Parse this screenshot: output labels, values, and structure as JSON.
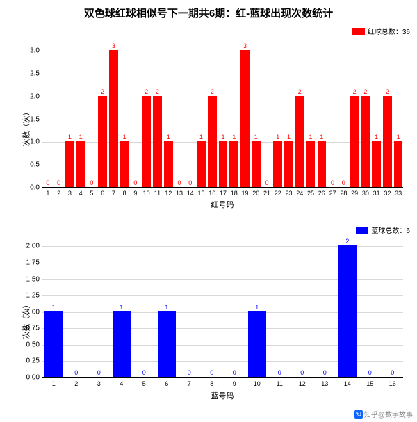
{
  "title": {
    "text": "双色球红球相似号下一期共6期：红-蓝球出现次数统计",
    "fontsize": 15,
    "color": "#000000"
  },
  "grid_color": "#d9d9d9",
  "background_color": "#ffffff",
  "red_chart": {
    "type": "bar",
    "color": "#ff0000",
    "legend_label": "红球总数：36",
    "ylabel": "次数（次）",
    "xlabel": "红号码",
    "xlim": [
      0.5,
      33.5
    ],
    "ylim": [
      0,
      3.2
    ],
    "yticks": [
      0.0,
      0.5,
      1.0,
      1.5,
      2.0,
      2.5,
      3.0
    ],
    "bar_width": 0.8,
    "categories": [
      1,
      2,
      3,
      4,
      5,
      6,
      7,
      8,
      9,
      10,
      11,
      12,
      13,
      14,
      15,
      16,
      17,
      18,
      19,
      20,
      21,
      22,
      23,
      24,
      25,
      26,
      27,
      28,
      29,
      30,
      31,
      32,
      33
    ],
    "values": [
      0,
      0,
      1,
      1,
      0,
      2,
      3,
      1,
      0,
      2,
      2,
      1,
      0,
      0,
      1,
      2,
      1,
      1,
      3,
      1,
      0,
      1,
      1,
      2,
      1,
      1,
      0,
      0,
      2,
      2,
      1,
      2,
      1
    ],
    "label_fontsize": 9,
    "axis_fontsize": 10
  },
  "blue_chart": {
    "type": "bar",
    "color": "#0000ff",
    "legend_label": "蓝球总数：6",
    "ylabel": "次数（次）",
    "xlabel": "蓝号码",
    "xlim": [
      0.5,
      16.5
    ],
    "ylim": [
      0,
      2.1
    ],
    "yticks": [
      0.0,
      0.25,
      0.5,
      0.75,
      1.0,
      1.25,
      1.5,
      1.75,
      2.0
    ],
    "bar_width": 0.8,
    "categories": [
      1,
      2,
      3,
      4,
      5,
      6,
      7,
      8,
      9,
      10,
      11,
      12,
      13,
      14,
      15,
      16
    ],
    "values": [
      1,
      0,
      0,
      1,
      0,
      1,
      0,
      0,
      0,
      1,
      0,
      0,
      0,
      2,
      0,
      0
    ],
    "label_fontsize": 9,
    "axis_fontsize": 10
  },
  "watermark": {
    "platform_icon": "知",
    "text": "知乎@数字故事",
    "color": "#888888"
  }
}
